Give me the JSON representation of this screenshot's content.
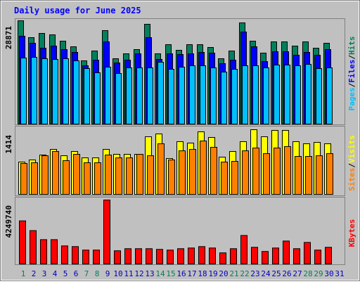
{
  "chart_data": [
    {
      "type": "bar",
      "title": "Daily usage for June 2025",
      "ylim": [
        0,
        28871
      ],
      "yticks": [
        28871
      ],
      "legend_separator": "/",
      "series": [
        {
          "name": "Hits",
          "color": "#00805c",
          "values": [
            28871,
            24157,
            25336,
            24943,
            23175,
            21604,
            17676,
            20426,
            26121,
            18265,
            19640,
            20818,
            27889,
            19640,
            22193,
            20622,
            22193,
            22193,
            21408,
            18265,
            20426,
            28282,
            23175,
            19836,
            22979,
            22979,
            21800,
            22979,
            21211,
            22586,
            0
          ]
        },
        {
          "name": "Files",
          "color": "#0000ff",
          "values": [
            24550,
            22586,
            21211,
            21800,
            20818,
            20033,
            16301,
            17872,
            22979,
            17087,
            17872,
            19640,
            24157,
            18069,
            19640,
            19444,
            19640,
            20033,
            19836,
            16890,
            17872,
            25728,
            21604,
            17480,
            20229,
            20229,
            19247,
            20033,
            19247,
            20818,
            0
          ]
        },
        {
          "name": "Pages",
          "color": "#00c0ff",
          "values": [
            18462,
            18658,
            18265,
            18069,
            18265,
            17676,
            15516,
            14337,
            15908,
            14141,
            15712,
            15712,
            15712,
            17283,
            15319,
            15908,
            16301,
            16301,
            15712,
            14534,
            15319,
            16301,
            16301,
            15712,
            16498,
            16498,
            16301,
            16694,
            15516,
            15712,
            0
          ]
        }
      ]
    },
    {
      "type": "bar",
      "ylim": [
        0,
        1414
      ],
      "yticks": [
        1414
      ],
      "legend_separator": "/",
      "series": [
        {
          "name": "Visits",
          "color": "#ffff00",
          "values": [
            707,
            753,
            861,
            984,
            845,
            938,
            799,
            799,
            984,
            876,
            876,
            876,
            1260,
            1322,
            784,
            1153,
            1122,
            1368,
            1245,
            815,
            938,
            1153,
            1414,
            1260,
            1399,
            1399,
            1153,
            1107,
            1137,
            1107,
            0
          ]
        },
        {
          "name": "Sites",
          "color": "#ff8000",
          "values": [
            676,
            692,
            845,
            938,
            738,
            876,
            692,
            692,
            861,
            799,
            799,
            876,
            845,
            1107,
            753,
            953,
            984,
            1168,
            1030,
            707,
            722,
            953,
            1014,
            891,
            1014,
            1045,
            830,
            830,
            845,
            891,
            0
          ]
        }
      ]
    },
    {
      "type": "bar",
      "ylim": [
        0,
        4249740
      ],
      "yticks": [
        4249740
      ],
      "categories": [
        "1",
        "2",
        "3",
        "4",
        "5",
        "6",
        "7",
        "8",
        "9",
        "10",
        "11",
        "12",
        "13",
        "14",
        "15",
        "16",
        "17",
        "18",
        "19",
        "20",
        "21",
        "22",
        "23",
        "24",
        "25",
        "26",
        "27",
        "28",
        "29",
        "30",
        "31"
      ],
      "category_colors": [
        "#00805c",
        "#0000c0",
        "#0000c0",
        "#0000c0",
        "#0000c0",
        "#0000c0",
        "#00805c",
        "#00805c",
        "#0000c0",
        "#0000c0",
        "#0000c0",
        "#0000c0",
        "#0000c0",
        "#00805c",
        "#00805c",
        "#0000c0",
        "#0000c0",
        "#0000c0",
        "#0000c0",
        "#0000c0",
        "#00805c",
        "#00805c",
        "#0000c0",
        "#0000c0",
        "#0000c0",
        "#0000c0",
        "#0000c0",
        "#00805c",
        "#00805c",
        "#0000c0",
        "#0000c0"
      ],
      "series": [
        {
          "name": "KBytes",
          "color": "#ff0000",
          "values": [
            2863966,
            2217264,
            1616755,
            1616755,
            1201018,
            1154825,
            923860,
            923860,
            4249740,
            877667,
            1016246,
            1016246,
            1016246,
            970053,
            923860,
            1016246,
            1062439,
            1154825,
            1062439,
            739088,
            1016246,
            1893913,
            1108632,
            831474,
            1062439,
            1524369,
            1016246,
            1431983,
            923860,
            1108632,
            0
          ]
        }
      ]
    }
  ]
}
